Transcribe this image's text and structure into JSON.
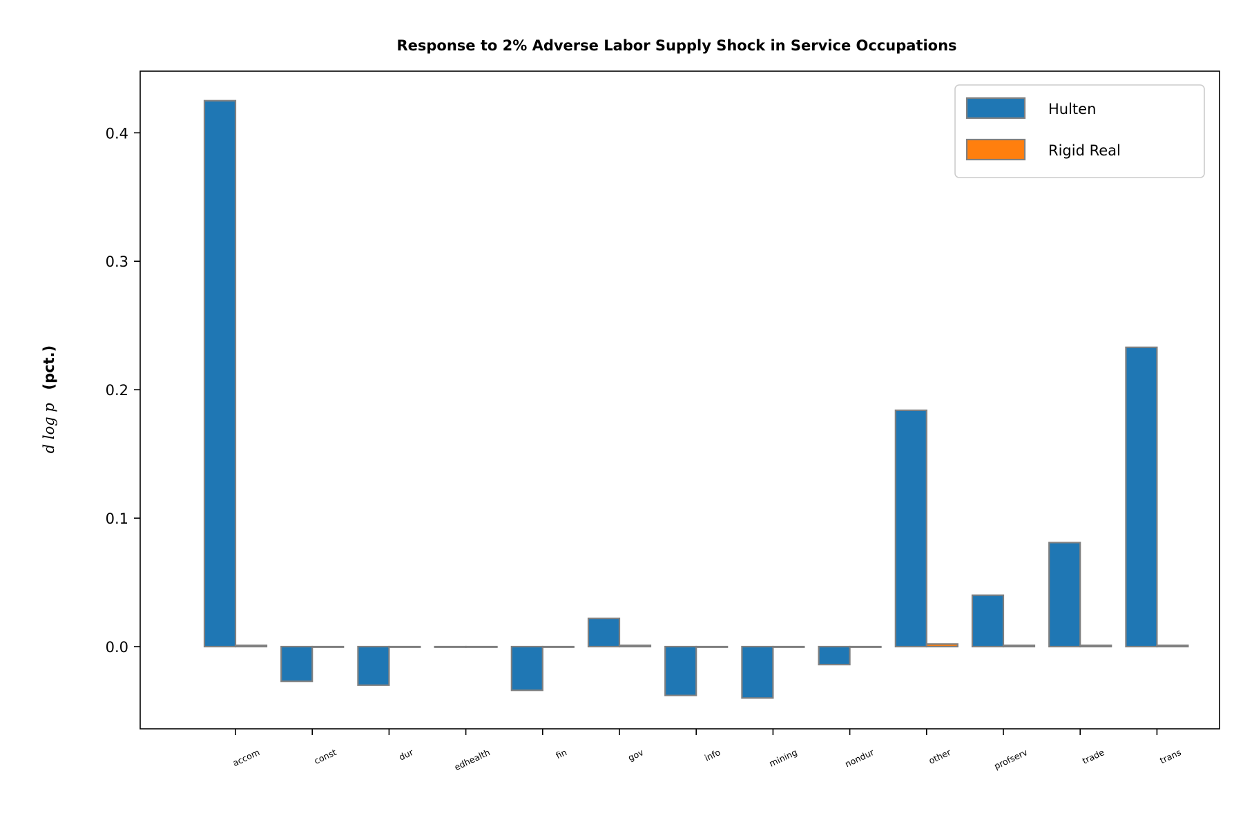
{
  "chart_data": {
    "type": "bar",
    "title": "Response to 2% Adverse Labor Supply Shock in Service Occupations",
    "ylabel_math": "d log p",
    "ylabel_unit": "(pct.)",
    "xlabel": "",
    "categories": [
      "accom",
      "const",
      "dur",
      "edhealth",
      "fin",
      "gov",
      "info",
      "mining",
      "nondur",
      "other",
      "profserv",
      "trade",
      "trans"
    ],
    "series": [
      {
        "name": "Hulten",
        "color": "#1f77b4",
        "values": [
          0.425,
          -0.027,
          -0.03,
          0.0,
          -0.034,
          0.022,
          -0.038,
          -0.04,
          -0.014,
          0.184,
          0.04,
          0.081,
          0.233
        ]
      },
      {
        "name": "Rigid Real",
        "color": "#ff7f0e",
        "values": [
          0.001,
          0.0,
          0.0,
          0.0,
          0.0,
          0.001,
          0.0,
          0.0,
          0.0,
          0.002,
          0.001,
          0.001,
          0.001
        ]
      }
    ],
    "ylim": [
      -0.064,
      0.448
    ],
    "yticks": [
      "0.0",
      "0.1",
      "0.2",
      "0.3",
      "0.4"
    ],
    "ytick_values": [
      0.0,
      0.1,
      0.2,
      0.3,
      0.4
    ],
    "bar_edge_color": "#808080",
    "legend_position": "top-right",
    "grid": false
  }
}
